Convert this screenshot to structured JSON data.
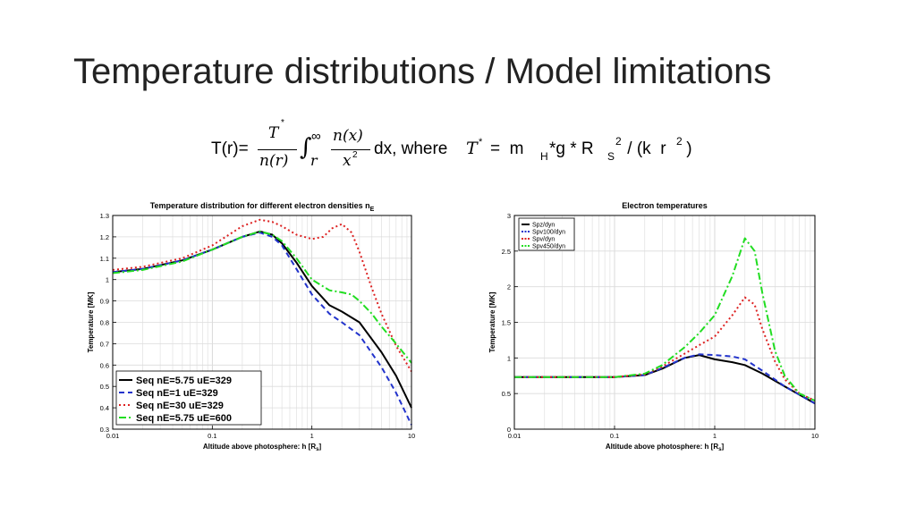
{
  "slide": {
    "title": "Temperature distributions / Model limitations"
  },
  "formula": {
    "lhs": "T(r)=",
    "frac_num": "T",
    "frac_num_sup": "*",
    "frac_den": "n(r)",
    "integral": "∫",
    "int_lower": "r",
    "int_upper": "∞",
    "integrand_num": "n(x)",
    "integrand_den": "x",
    "integrand_den_sup": "2",
    "dx_where": "dx, where",
    "tstar": "T",
    "tstar_sup": "*",
    "equals": "=  m",
    "sub_h": "H",
    "g": "*g * R",
    "sub_s": "S",
    "sup_2a": "2",
    "k_r": " / (k  r",
    "sup_2b": "2",
    "close": " )"
  },
  "chart_data": [
    {
      "type": "line",
      "title": "Temperature distribution for different electron densities n",
      "title_sub": "E",
      "xlabel": "Altitude above photosphere: h [R",
      "xlabel_sub": "s",
      "xlabel_end": "]",
      "ylabel": "Temperature [MK]",
      "xscale": "log",
      "xlim": [
        0.01,
        10
      ],
      "ylim": [
        0.3,
        1.3
      ],
      "xticks": [
        0.01,
        0.1,
        1,
        10
      ],
      "xtick_labels": [
        "0.01",
        "0.1",
        "1",
        "10"
      ],
      "yticks": [
        0.3,
        0.4,
        0.5,
        0.6,
        0.7,
        0.8,
        0.9,
        1,
        1.1,
        1.2,
        1.3
      ],
      "ytick_labels": [
        "0.3",
        "0.4",
        "0.5",
        "0.6",
        "0.7",
        "0.8",
        "0.9",
        "1",
        "1.1",
        "1.2",
        "1.3"
      ],
      "grid": true,
      "legend_position": "bottom-left",
      "series": [
        {
          "name": "Seq nE=5.75 uE=329",
          "color": "#000000",
          "dash": "solid",
          "x": [
            0.01,
            0.02,
            0.05,
            0.1,
            0.2,
            0.3,
            0.4,
            0.5,
            0.7,
            1.0,
            1.5,
            2.0,
            3.0,
            5.0,
            7.0,
            10.0
          ],
          "y": [
            1.035,
            1.05,
            1.09,
            1.14,
            1.2,
            1.225,
            1.21,
            1.17,
            1.08,
            0.97,
            0.88,
            0.85,
            0.8,
            0.66,
            0.55,
            0.4
          ]
        },
        {
          "name": "Seq nE=1 uE=329",
          "color": "#2233cc",
          "dash": "dash",
          "x": [
            0.01,
            0.02,
            0.05,
            0.1,
            0.2,
            0.3,
            0.4,
            0.5,
            0.7,
            1.0,
            1.5,
            2.0,
            3.0,
            5.0,
            7.0,
            10.0
          ],
          "y": [
            1.035,
            1.05,
            1.09,
            1.14,
            1.2,
            1.22,
            1.2,
            1.16,
            1.05,
            0.93,
            0.84,
            0.8,
            0.74,
            0.59,
            0.47,
            0.32
          ]
        },
        {
          "name": "Seq nE=30 uE=329",
          "color": "#dd2222",
          "dash": "dot",
          "x": [
            0.01,
            0.02,
            0.05,
            0.1,
            0.2,
            0.3,
            0.4,
            0.5,
            0.7,
            1.0,
            1.3,
            1.6,
            2.0,
            2.5,
            3.0,
            4.0,
            5.0,
            7.0,
            10.0
          ],
          "y": [
            1.045,
            1.06,
            1.1,
            1.16,
            1.25,
            1.28,
            1.27,
            1.25,
            1.21,
            1.19,
            1.2,
            1.24,
            1.26,
            1.22,
            1.13,
            0.96,
            0.84,
            0.69,
            0.57
          ]
        },
        {
          "name": "Seq nE=5.75 uE=600",
          "color": "#22dd22",
          "dash": "dashdot",
          "x": [
            0.01,
            0.02,
            0.05,
            0.1,
            0.2,
            0.3,
            0.4,
            0.5,
            0.7,
            1.0,
            1.5,
            2.0,
            2.5,
            3.0,
            4.0,
            5.0,
            7.0,
            10.0
          ],
          "y": [
            1.03,
            1.045,
            1.085,
            1.14,
            1.2,
            1.225,
            1.21,
            1.18,
            1.1,
            1.0,
            0.95,
            0.94,
            0.93,
            0.9,
            0.84,
            0.78,
            0.7,
            0.61
          ]
        }
      ]
    },
    {
      "type": "line",
      "title": "Electron temperatures",
      "xlabel": "Altitude above photosphere: h [R",
      "xlabel_sub": "s",
      "xlabel_end": "]",
      "ylabel": "Temperature [MK]",
      "xscale": "log",
      "xlim": [
        0.01,
        10
      ],
      "ylim": [
        0,
        3
      ],
      "xticks": [
        0.01,
        0.1,
        1,
        10
      ],
      "xtick_labels": [
        "0.01",
        "0.1",
        "1",
        "10"
      ],
      "yticks": [
        0,
        0.5,
        1,
        1.5,
        2,
        2.5,
        3
      ],
      "ytick_labels": [
        "0",
        "0.5",
        "1",
        "1.5",
        "2",
        "2.5",
        "3"
      ],
      "grid": true,
      "legend_position": "top-left",
      "series": [
        {
          "name": "Spz/dyn",
          "color": "#000000",
          "dash": "solid",
          "x": [
            0.01,
            0.03,
            0.1,
            0.2,
            0.3,
            0.5,
            0.7,
            1.0,
            1.5,
            2.0,
            3.0,
            5.0,
            10.0
          ],
          "y": [
            0.73,
            0.73,
            0.73,
            0.76,
            0.85,
            1.0,
            1.04,
            0.98,
            0.94,
            0.9,
            0.78,
            0.6,
            0.36
          ]
        },
        {
          "name": "Spv100/dyn",
          "color": "#2233cc",
          "dash": "dash",
          "x": [
            0.01,
            0.03,
            0.1,
            0.2,
            0.3,
            0.5,
            0.7,
            1.0,
            1.5,
            2.0,
            3.0,
            5.0,
            10.0
          ],
          "y": [
            0.73,
            0.73,
            0.73,
            0.76,
            0.86,
            1.0,
            1.05,
            1.04,
            1.02,
            0.98,
            0.82,
            0.6,
            0.36
          ]
        },
        {
          "name": "Spv/dyn",
          "color": "#dd2222",
          "dash": "dot",
          "x": [
            0.01,
            0.03,
            0.1,
            0.2,
            0.3,
            0.5,
            0.7,
            1.0,
            1.5,
            2.0,
            2.5,
            3.0,
            4.0,
            5.0,
            7.0,
            10.0
          ],
          "y": [
            0.73,
            0.73,
            0.73,
            0.77,
            0.88,
            1.06,
            1.18,
            1.3,
            1.6,
            1.85,
            1.75,
            1.4,
            0.95,
            0.7,
            0.5,
            0.4
          ]
        },
        {
          "name": "Spv450/dyn",
          "color": "#22dd22",
          "dash": "dashdot",
          "x": [
            0.01,
            0.03,
            0.1,
            0.2,
            0.3,
            0.5,
            0.7,
            1.0,
            1.5,
            2.0,
            2.5,
            3.0,
            4.0,
            5.0,
            7.0,
            10.0
          ],
          "y": [
            0.73,
            0.73,
            0.73,
            0.78,
            0.9,
            1.15,
            1.35,
            1.6,
            2.15,
            2.68,
            2.5,
            1.9,
            1.1,
            0.75,
            0.5,
            0.4
          ]
        }
      ]
    }
  ]
}
